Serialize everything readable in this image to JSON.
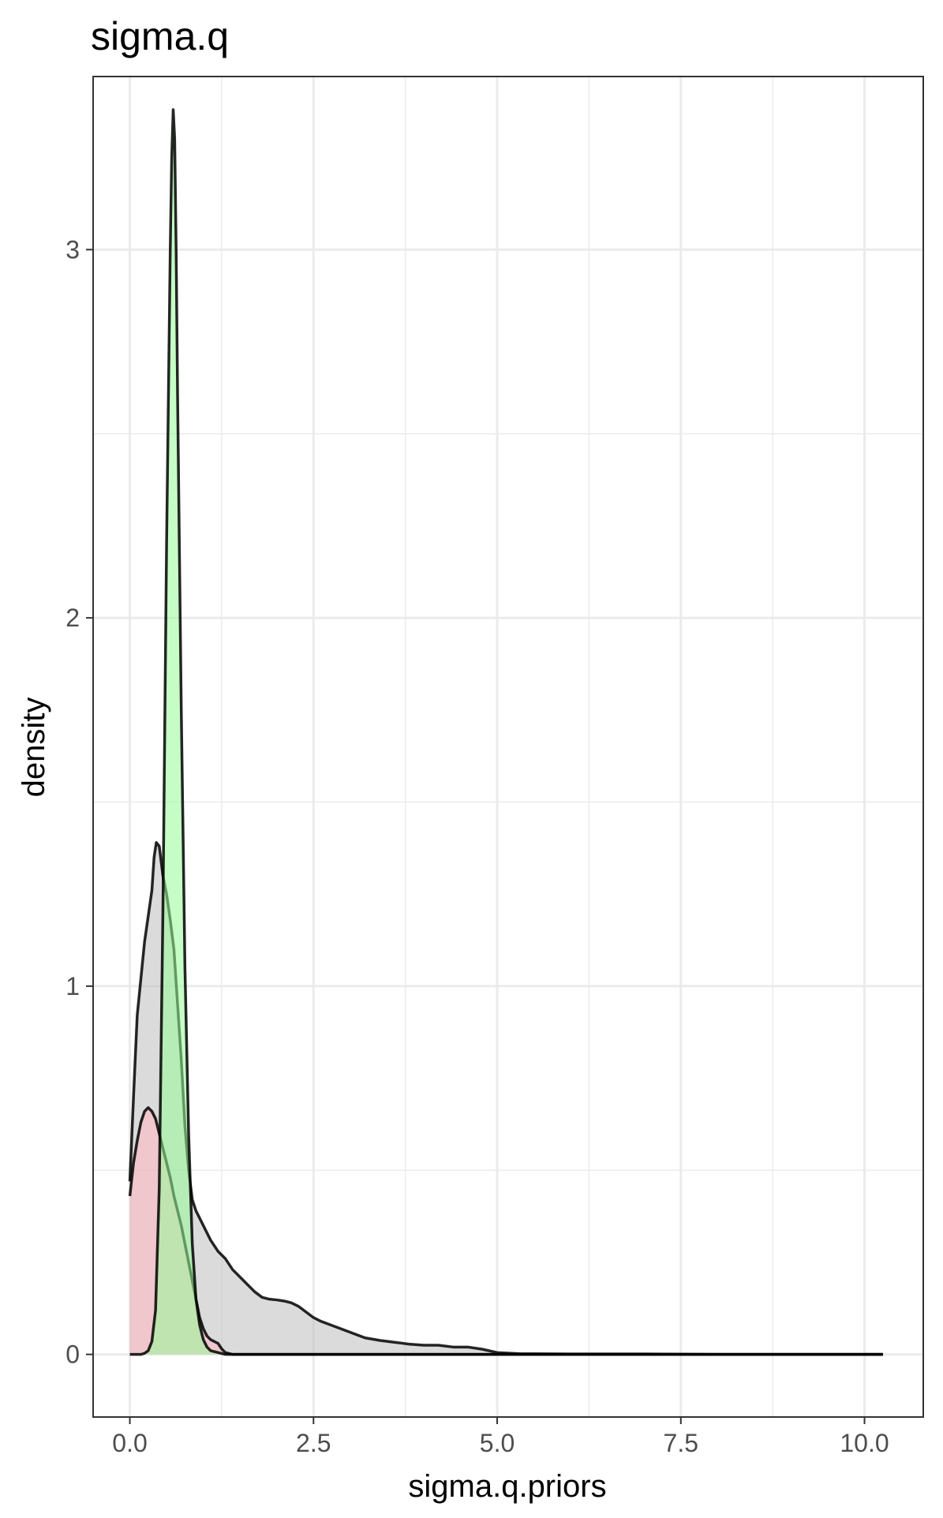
{
  "chart_data": {
    "type": "area",
    "title": "sigma.q",
    "xlabel": "sigma.q.priors",
    "ylabel": "density",
    "xlim": [
      -0.5,
      10.8
    ],
    "ylim": [
      -0.17,
      3.47
    ],
    "grid": true,
    "x_ticks": [
      0,
      2.5,
      5,
      7.5,
      10
    ],
    "x_tick_labels": [
      "0.0",
      "2.5",
      "5.0",
      "7.5",
      "10.0"
    ],
    "y_ticks": [
      0,
      1,
      2,
      3
    ],
    "y_tick_labels": [
      "0",
      "1",
      "2",
      "3"
    ],
    "series": [
      {
        "fill": "#bebebe",
        "stroke": "#000000",
        "points": [
          [
            0,
            0.47
          ],
          [
            0.05,
            0.7
          ],
          [
            0.1,
            0.92
          ],
          [
            0.2,
            1.12
          ],
          [
            0.3,
            1.26
          ],
          [
            0.33,
            1.35
          ],
          [
            0.36,
            1.39
          ],
          [
            0.4,
            1.38
          ],
          [
            0.45,
            1.3
          ],
          [
            0.5,
            1.25
          ],
          [
            0.55,
            1.18
          ],
          [
            0.6,
            1.1
          ],
          [
            0.65,
            0.95
          ],
          [
            0.7,
            0.8
          ],
          [
            0.75,
            0.62
          ],
          [
            0.8,
            0.5
          ],
          [
            0.85,
            0.42
          ],
          [
            0.9,
            0.39
          ],
          [
            1.0,
            0.35
          ],
          [
            1.1,
            0.31
          ],
          [
            1.2,
            0.28
          ],
          [
            1.3,
            0.26
          ],
          [
            1.4,
            0.23
          ],
          [
            1.5,
            0.21
          ],
          [
            1.6,
            0.19
          ],
          [
            1.7,
            0.17
          ],
          [
            1.8,
            0.155
          ],
          [
            1.9,
            0.15
          ],
          [
            2.0,
            0.148
          ],
          [
            2.1,
            0.145
          ],
          [
            2.2,
            0.14
          ],
          [
            2.3,
            0.13
          ],
          [
            2.4,
            0.115
          ],
          [
            2.5,
            0.1
          ],
          [
            2.6,
            0.09
          ],
          [
            2.8,
            0.075
          ],
          [
            3.0,
            0.06
          ],
          [
            3.2,
            0.045
          ],
          [
            3.4,
            0.038
          ],
          [
            3.6,
            0.033
          ],
          [
            3.8,
            0.028
          ],
          [
            4.0,
            0.025
          ],
          [
            4.2,
            0.025
          ],
          [
            4.4,
            0.02
          ],
          [
            4.6,
            0.02
          ],
          [
            4.8,
            0.014
          ],
          [
            5.0,
            0.005
          ],
          [
            5.3,
            0.002
          ],
          [
            6.0,
            0.001
          ],
          [
            7.0,
            0.001
          ],
          [
            8.0,
            0.0
          ],
          [
            9.0,
            0.0
          ],
          [
            10.25,
            0.0
          ]
        ]
      },
      {
        "fill": "#ffb6c1",
        "stroke": "#000000",
        "points": [
          [
            0,
            0.43
          ],
          [
            0.05,
            0.52
          ],
          [
            0.1,
            0.58
          ],
          [
            0.15,
            0.63
          ],
          [
            0.2,
            0.66
          ],
          [
            0.25,
            0.67
          ],
          [
            0.3,
            0.66
          ],
          [
            0.35,
            0.64
          ],
          [
            0.4,
            0.6
          ],
          [
            0.45,
            0.56
          ],
          [
            0.5,
            0.52
          ],
          [
            0.55,
            0.48
          ],
          [
            0.6,
            0.43
          ],
          [
            0.65,
            0.39
          ],
          [
            0.7,
            0.35
          ],
          [
            0.75,
            0.3
          ],
          [
            0.8,
            0.25
          ],
          [
            0.85,
            0.2
          ],
          [
            0.9,
            0.15
          ],
          [
            0.95,
            0.1
          ],
          [
            1.0,
            0.07
          ],
          [
            1.05,
            0.05
          ],
          [
            1.1,
            0.04
          ],
          [
            1.15,
            0.035
          ],
          [
            1.2,
            0.03
          ],
          [
            1.25,
            0.015
          ],
          [
            1.3,
            0.005
          ],
          [
            1.4,
            0.0
          ],
          [
            10.25,
            0.0
          ]
        ]
      },
      {
        "fill": "#98fb98",
        "stroke": "#000000",
        "points": [
          [
            0,
            0.0
          ],
          [
            0.05,
            0.0
          ],
          [
            0.1,
            0.0
          ],
          [
            0.15,
            0.0
          ],
          [
            0.2,
            0.003
          ],
          [
            0.25,
            0.01
          ],
          [
            0.3,
            0.035
          ],
          [
            0.35,
            0.12
          ],
          [
            0.4,
            0.45
          ],
          [
            0.45,
            1.2
          ],
          [
            0.5,
            2.2
          ],
          [
            0.55,
            3.0
          ],
          [
            0.57,
            3.25
          ],
          [
            0.59,
            3.38
          ],
          [
            0.61,
            3.3
          ],
          [
            0.63,
            3.0
          ],
          [
            0.65,
            2.6
          ],
          [
            0.7,
            1.75
          ],
          [
            0.75,
            1.05
          ],
          [
            0.8,
            0.6
          ],
          [
            0.85,
            0.3
          ],
          [
            0.9,
            0.15
          ],
          [
            0.95,
            0.08
          ],
          [
            1.0,
            0.04
          ],
          [
            1.05,
            0.02
          ],
          [
            1.1,
            0.01
          ],
          [
            1.2,
            0.005
          ],
          [
            1.3,
            0.0
          ],
          [
            10.25,
            0.0
          ]
        ]
      }
    ]
  }
}
